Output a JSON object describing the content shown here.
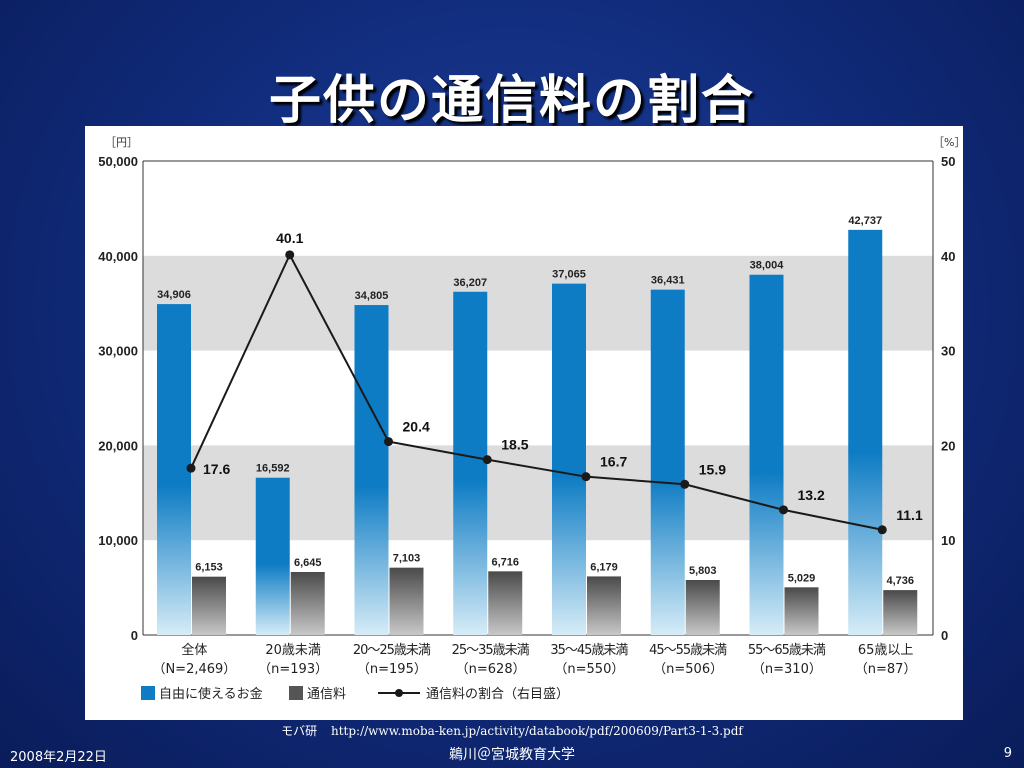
{
  "slide": {
    "title": "子供の通信料の割合",
    "source_label": "モバ研",
    "source_url": "http://www.moba-ken.jp/activity/databook/pdf/200609/Part3-1-3.pdf",
    "footer_date": "2008年2月22日",
    "footer_center": "鵜川＠宮城教育大学",
    "page_number": "9"
  },
  "colors": {
    "background": "#102a78",
    "bar_allowance_top": "#0e7cc4",
    "bar_allowance_bottom": "#d6ecf7",
    "bar_comm_top": "#4a4a4a",
    "bar_comm_bottom": "#c8c8c8",
    "band": "#dcdcdc",
    "line": "#1a1a1a"
  },
  "chart_data": {
    "type": "bar",
    "left_unit": "［円］",
    "right_unit": "［%］",
    "ylim": [
      0,
      50000
    ],
    "y2lim": [
      0,
      50
    ],
    "yticks": [
      "50,000",
      "40,000",
      "30,000",
      "20,000",
      "10,000",
      "0"
    ],
    "y2ticks": [
      "50",
      "40",
      "30",
      "20",
      "10",
      "0"
    ],
    "grid_bands": true,
    "legend_position": "bottom-left",
    "categories": [
      {
        "name": "全体",
        "n": "（N=2,469）"
      },
      {
        "name": "20歳未満",
        "n": "（n=193）"
      },
      {
        "name": "20～25歳未満",
        "n": "（n=195）"
      },
      {
        "name": "25～35歳未満",
        "n": "（n=628）"
      },
      {
        "name": "35～45歳未満",
        "n": "（n=550）"
      },
      {
        "name": "45～55歳未満",
        "n": "（n=506）"
      },
      {
        "name": "55～65歳未満",
        "n": "（n=310）"
      },
      {
        "name": "65歳以上",
        "n": "（n=87）"
      }
    ],
    "series": [
      {
        "name": "自由に使えるお金",
        "type": "bar",
        "axis": "left",
        "values": [
          34906,
          16592,
          34805,
          36207,
          37065,
          36431,
          38004,
          42737
        ],
        "labels": [
          "34,906",
          "16,592",
          "34,805",
          "36,207",
          "37,065",
          "36,431",
          "38,004",
          "42,737"
        ]
      },
      {
        "name": "通信料",
        "type": "bar",
        "axis": "left",
        "values": [
          6153,
          6645,
          7103,
          6716,
          6179,
          5803,
          5029,
          4736
        ],
        "labels": [
          "6,153",
          "6,645",
          "7,103",
          "6,716",
          "6,179",
          "5,803",
          "5,029",
          "4,736"
        ]
      },
      {
        "name": "通信料の割合（右目盛）",
        "type": "line",
        "axis": "right",
        "values": [
          17.6,
          40.1,
          20.4,
          18.5,
          16.7,
          15.9,
          13.2,
          11.1
        ],
        "labels": [
          "17.6",
          "40.1",
          "20.4",
          "18.5",
          "16.7",
          "15.9",
          "13.2",
          "11.1"
        ]
      }
    ]
  }
}
